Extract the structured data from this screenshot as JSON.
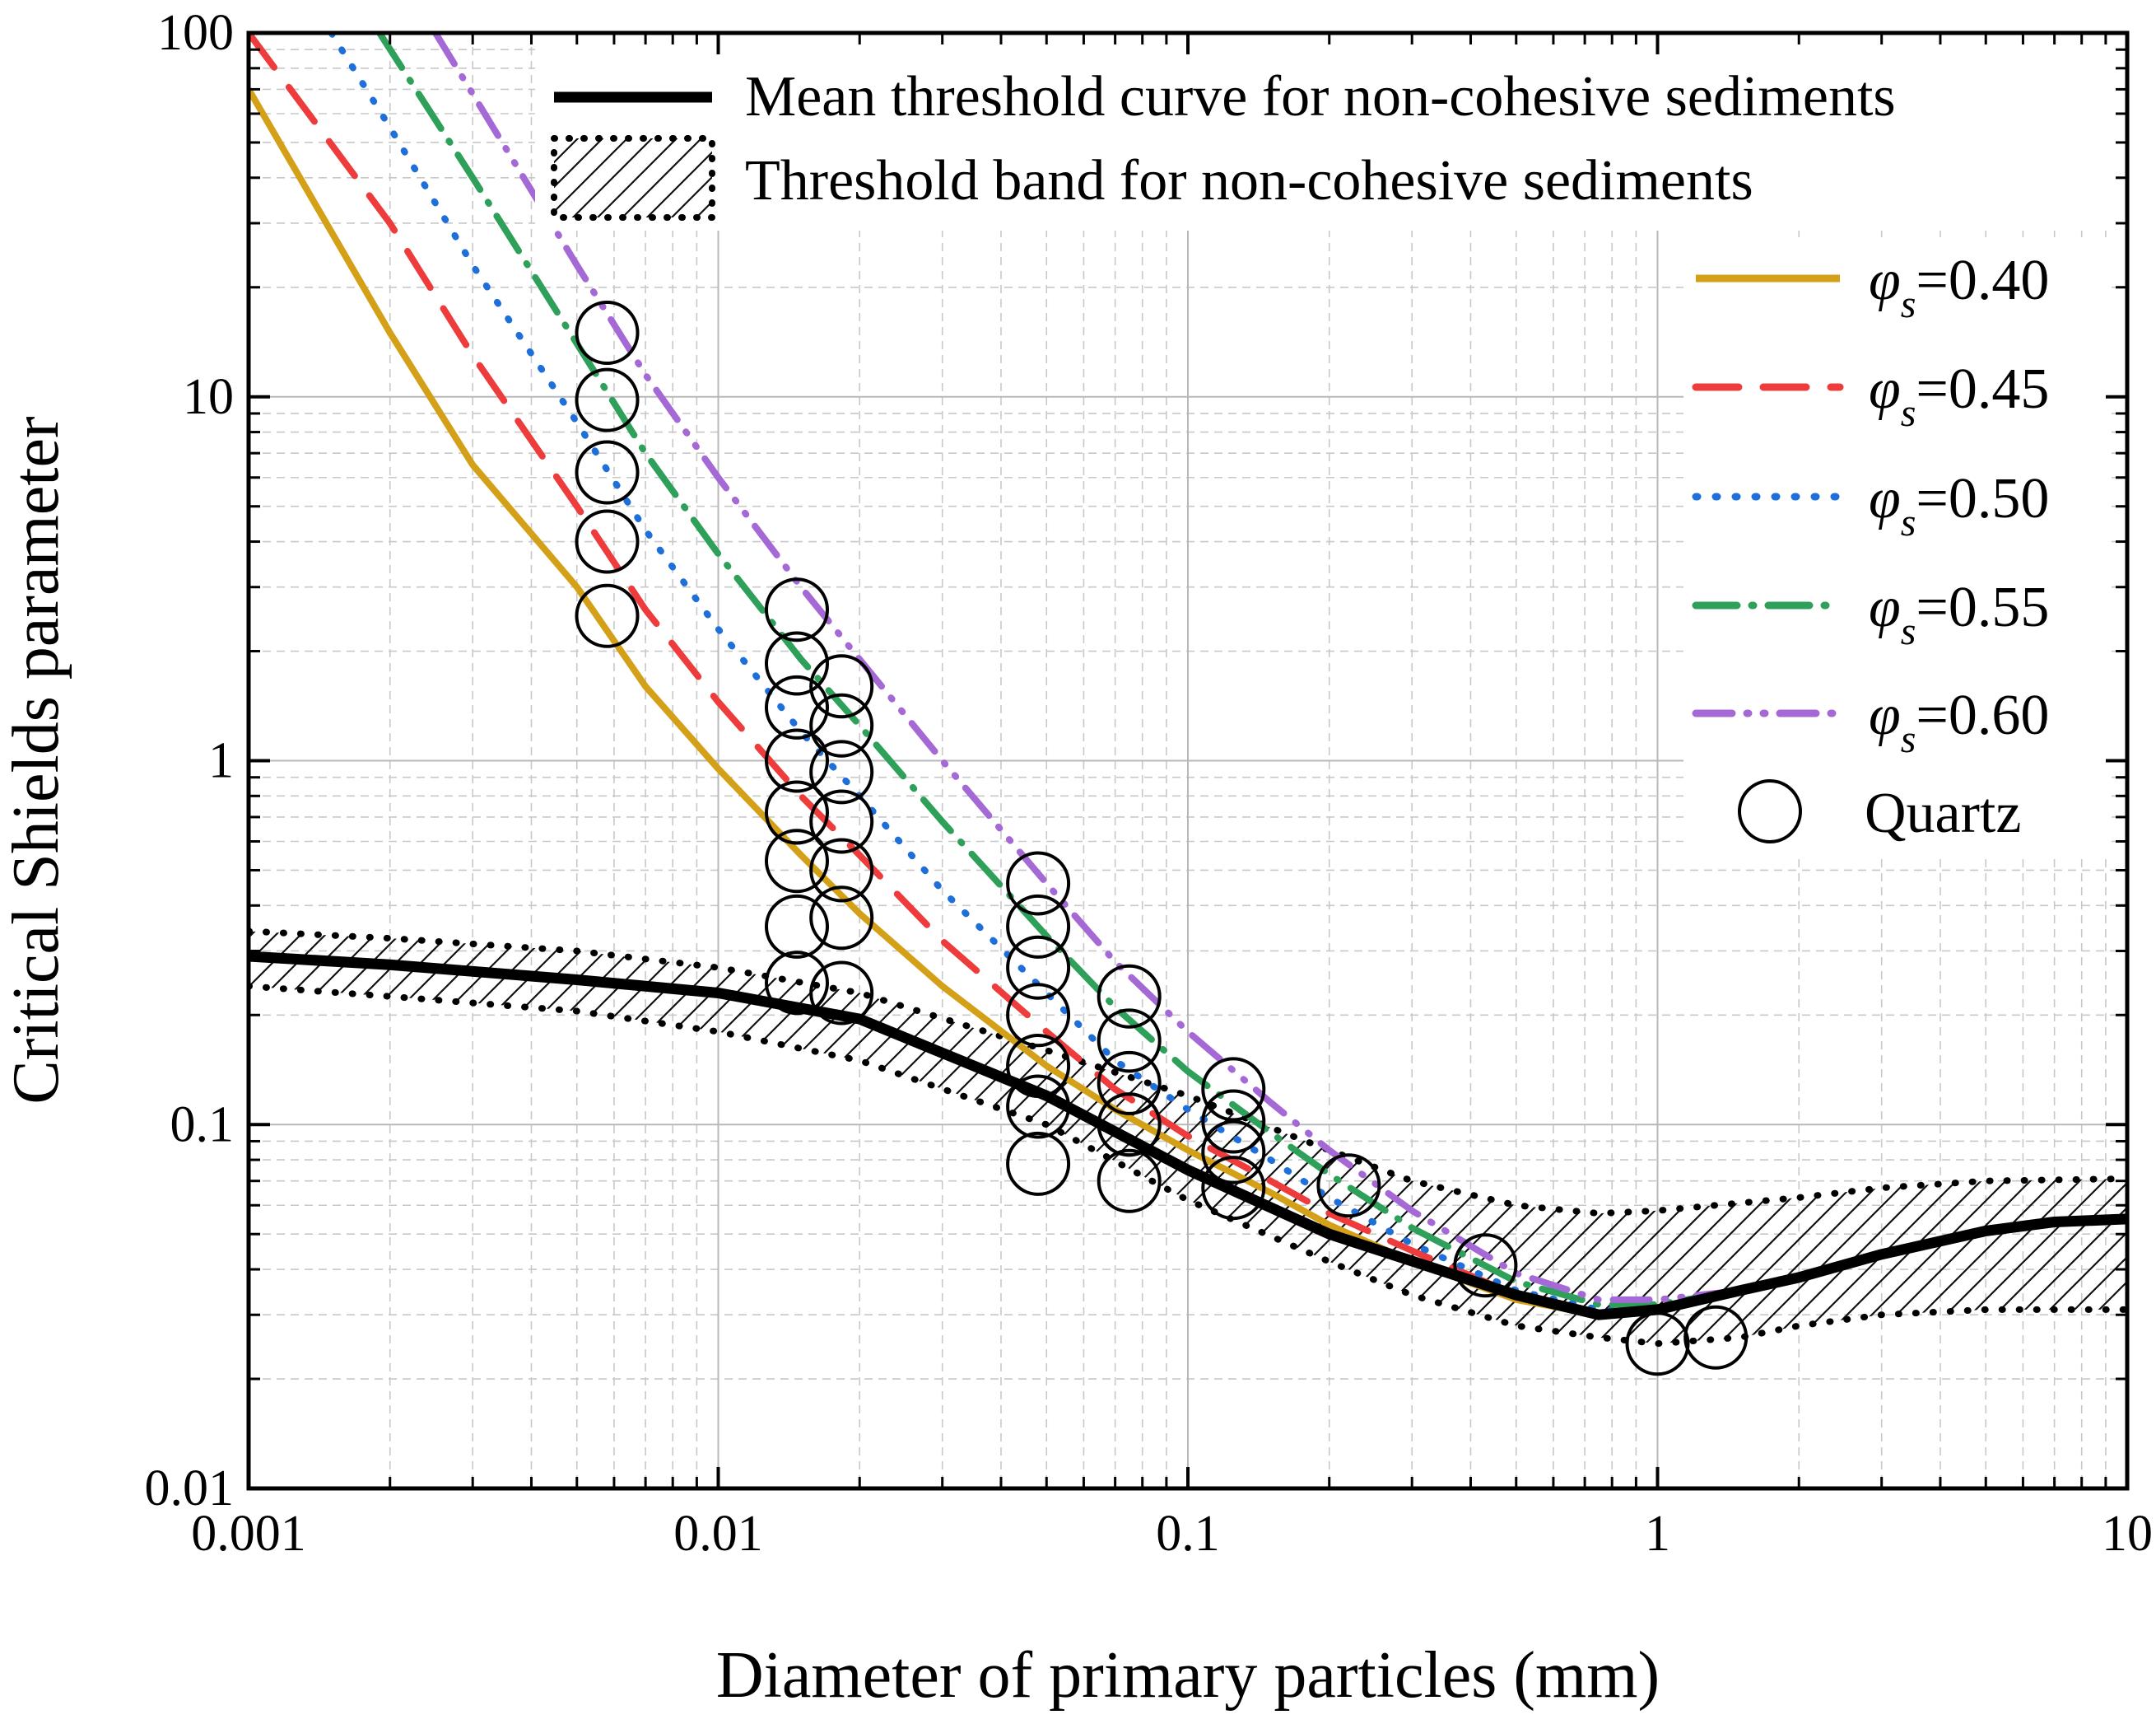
{
  "chart_data": {
    "type": "line",
    "xscale": "log",
    "yscale": "log",
    "xlabel": "Diameter of primary particles (mm)",
    "ylabel": "Critical Shields parameter",
    "xlim": [
      0.001,
      10
    ],
    "ylim": [
      0.01,
      100
    ],
    "x_ticks": [
      "0.001",
      "0.01",
      "0.1",
      "1",
      "10"
    ],
    "y_ticks": [
      "0.01",
      "0.1",
      "1",
      "10",
      "100"
    ],
    "grid": true,
    "legend": [
      {
        "label": "Mean threshold curve for non-cohesive sediments",
        "style": "solid-black"
      },
      {
        "label": "Threshold band for non-cohesive sediments",
        "style": "hatched-dotted"
      },
      {
        "prefix": "φ",
        "sub": "s",
        "label": "=0.40",
        "series": "phi040"
      },
      {
        "prefix": "φ",
        "sub": "s",
        "label": "=0.45",
        "series": "phi045"
      },
      {
        "prefix": "φ",
        "sub": "s",
        "label": "=0.50",
        "series": "phi050"
      },
      {
        "prefix": "φ",
        "sub": "s",
        "label": "=0.55",
        "series": "phi055"
      },
      {
        "prefix": "φ",
        "sub": "s",
        "label": "=0.60",
        "series": "phi060"
      },
      {
        "label": "Quartz",
        "style": "open-circle"
      }
    ],
    "mean_curve": {
      "name": "Mean threshold curve for non-cohesive sediments",
      "color": "#000000",
      "x": [
        0.001,
        0.002,
        0.005,
        0.01,
        0.02,
        0.05,
        0.1,
        0.2,
        0.5,
        0.75,
        1.0,
        1.5,
        2,
        3,
        5,
        7,
        10
      ],
      "y": [
        0.29,
        0.275,
        0.25,
        0.23,
        0.195,
        0.12,
        0.075,
        0.05,
        0.034,
        0.03,
        0.031,
        0.035,
        0.038,
        0.044,
        0.051,
        0.054,
        0.055
      ]
    },
    "band": {
      "name": "Threshold band for non-cohesive sediments",
      "upper": {
        "x": [
          0.001,
          0.002,
          0.005,
          0.01,
          0.02,
          0.05,
          0.1,
          0.2,
          0.3,
          0.5,
          0.75,
          1,
          2,
          3,
          5,
          10
        ],
        "y": [
          0.34,
          0.325,
          0.3,
          0.27,
          0.23,
          0.16,
          0.12,
          0.085,
          0.07,
          0.06,
          0.057,
          0.058,
          0.063,
          0.067,
          0.07,
          0.071
        ]
      },
      "lower": {
        "x": [
          0.001,
          0.002,
          0.005,
          0.01,
          0.02,
          0.05,
          0.1,
          0.2,
          0.3,
          0.5,
          0.75,
          1,
          1.5,
          2,
          3,
          5,
          10
        ],
        "y": [
          0.24,
          0.225,
          0.205,
          0.18,
          0.15,
          0.1,
          0.062,
          0.042,
          0.034,
          0.028,
          0.026,
          0.025,
          0.026,
          0.028,
          0.03,
          0.031,
          0.031
        ]
      }
    },
    "series": [
      {
        "name": "phi040",
        "color": "#D4A017",
        "dash": "",
        "x": [
          0.001,
          0.002,
          0.003,
          0.005,
          0.007,
          0.01,
          0.015,
          0.02,
          0.03,
          0.05,
          0.07,
          0.1,
          0.15,
          0.2,
          0.3,
          0.5,
          0.75,
          1,
          1.5,
          2,
          3,
          5,
          7,
          10
        ],
        "y": [
          70,
          15,
          6.5,
          3.0,
          1.6,
          0.95,
          0.55,
          0.38,
          0.24,
          0.145,
          0.11,
          0.085,
          0.065,
          0.053,
          0.042,
          0.033,
          0.03,
          0.031,
          0.035,
          0.038,
          0.044,
          0.051,
          0.054,
          0.055
        ]
      },
      {
        "name": "phi045",
        "color": "#EE3B3B",
        "dash": "52 30",
        "x": [
          0.001,
          0.002,
          0.003,
          0.005,
          0.007,
          0.01,
          0.015,
          0.02,
          0.03,
          0.05,
          0.07,
          0.1,
          0.15,
          0.2,
          0.3,
          0.5,
          0.75,
          1,
          1.5,
          2,
          3,
          5,
          7,
          10
        ],
        "y": [
          100,
          30,
          13,
          5.0,
          2.6,
          1.45,
          0.8,
          0.55,
          0.32,
          0.18,
          0.125,
          0.093,
          0.07,
          0.057,
          0.045,
          0.034,
          0.03,
          0.031,
          0.035,
          0.038,
          0.044,
          0.051,
          0.054,
          0.055
        ]
      },
      {
        "name": "phi050",
        "color": "#1E6FD9",
        "dash": "2 22",
        "x": [
          0.0015,
          0.002,
          0.003,
          0.005,
          0.007,
          0.01,
          0.015,
          0.02,
          0.03,
          0.05,
          0.07,
          0.1,
          0.15,
          0.2,
          0.3,
          0.5,
          0.75,
          1,
          1.5,
          2,
          3,
          5,
          7,
          10
        ],
        "y": [
          100,
          55,
          23,
          8.5,
          4.3,
          2.3,
          1.2,
          0.8,
          0.44,
          0.23,
          0.15,
          0.11,
          0.08,
          0.063,
          0.047,
          0.035,
          0.031,
          0.031,
          0.035,
          0.038,
          0.044,
          0.051,
          0.054,
          0.055
        ]
      },
      {
        "name": "phi055",
        "color": "#2EA05A",
        "dash": "50 18 2 18",
        "x": [
          0.0019,
          0.003,
          0.005,
          0.007,
          0.01,
          0.015,
          0.02,
          0.03,
          0.05,
          0.07,
          0.1,
          0.15,
          0.2,
          0.3,
          0.5,
          0.75,
          1,
          1.5,
          2,
          3,
          5,
          7,
          10
        ],
        "y": [
          100,
          40,
          14,
          7.0,
          3.7,
          1.9,
          1.25,
          0.68,
          0.33,
          0.21,
          0.14,
          0.095,
          0.073,
          0.052,
          0.037,
          0.032,
          0.032,
          0.035,
          0.038,
          0.044,
          0.051,
          0.054,
          0.055
        ]
      },
      {
        "name": "phi060",
        "color": "#A569D6",
        "dash": "44 18 2 18 2 18",
        "x": [
          0.0025,
          0.003,
          0.005,
          0.007,
          0.01,
          0.015,
          0.02,
          0.03,
          0.05,
          0.07,
          0.1,
          0.15,
          0.2,
          0.3,
          0.5,
          0.75,
          1,
          1.5,
          2,
          3,
          5,
          7,
          10
        ],
        "y": [
          100,
          68,
          23,
          11.5,
          6.0,
          3.0,
          1.9,
          1.0,
          0.46,
          0.28,
          0.18,
          0.115,
          0.085,
          0.058,
          0.039,
          0.033,
          0.033,
          0.035,
          0.038,
          0.044,
          0.051,
          0.054,
          0.055
        ]
      }
    ],
    "quartz": {
      "name": "Quartz",
      "x": [
        0.0058,
        0.0058,
        0.0058,
        0.0058,
        0.0058,
        0.0147,
        0.0147,
        0.0147,
        0.0147,
        0.0147,
        0.0147,
        0.0147,
        0.0147,
        0.0183,
        0.0183,
        0.0183,
        0.0183,
        0.0183,
        0.0183,
        0.0183,
        0.048,
        0.048,
        0.048,
        0.048,
        0.048,
        0.048,
        0.048,
        0.075,
        0.075,
        0.075,
        0.075,
        0.075,
        0.075,
        0.125,
        0.125,
        0.125,
        0.125,
        0.22,
        0.43,
        1.0,
        1.33
      ],
      "y": [
        15,
        9.8,
        6.2,
        4.0,
        2.5,
        2.6,
        1.85,
        1.4,
        1.0,
        0.72,
        0.53,
        0.35,
        0.245,
        1.6,
        1.25,
        0.93,
        0.68,
        0.5,
        0.37,
        0.23,
        0.46,
        0.35,
        0.27,
        0.2,
        0.145,
        0.112,
        0.078,
        0.225,
        0.17,
        0.13,
        0.1,
        0.07,
        0.1,
        0.125,
        0.102,
        0.084,
        0.067,
        0.068,
        0.041,
        0.025,
        0.026
      ]
    }
  }
}
